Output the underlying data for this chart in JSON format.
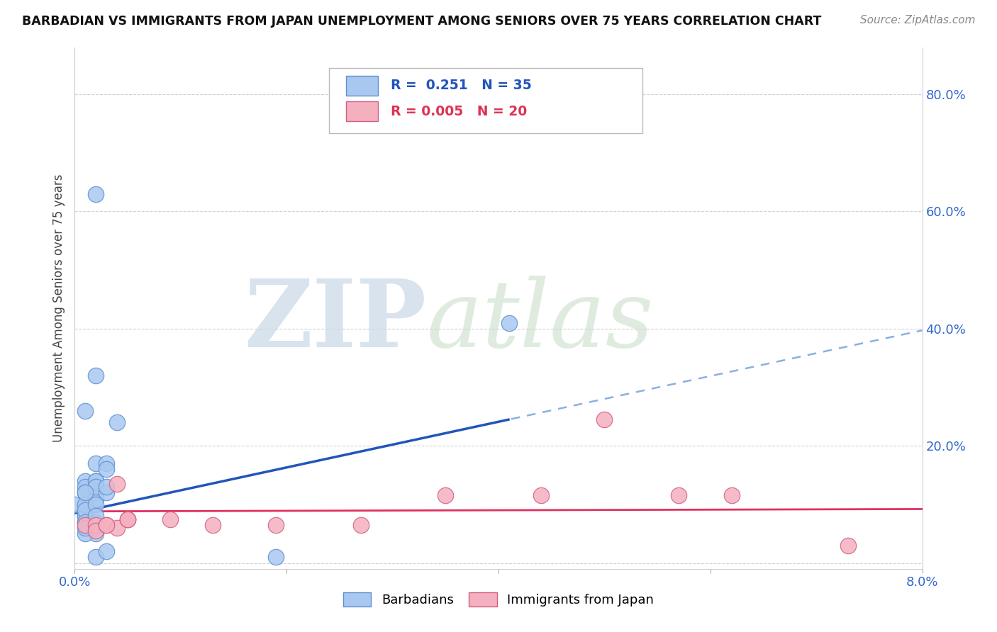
{
  "title": "BARBADIAN VS IMMIGRANTS FROM JAPAN UNEMPLOYMENT AMONG SENIORS OVER 75 YEARS CORRELATION CHART",
  "source": "Source: ZipAtlas.com",
  "ylabel": "Unemployment Among Seniors over 75 years",
  "watermark_left": "ZIP",
  "watermark_right": "atlas",
  "xlim": [
    0.0,
    0.08
  ],
  "ylim": [
    -0.01,
    0.88
  ],
  "ytick_vals": [
    0.0,
    0.2,
    0.4,
    0.6,
    0.8
  ],
  "ytick_labels_right": [
    "",
    "20.0%",
    "40.0%",
    "60.0%",
    "80.0%"
  ],
  "xtick_vals": [
    0.0,
    0.02,
    0.04,
    0.06,
    0.08
  ],
  "xtick_labels": [
    "0.0%",
    "",
    "",
    "",
    "8.0%"
  ],
  "barbadian_color": "#a8c8f0",
  "barbadian_edge": "#6090d0",
  "barbadian_trend_solid": "#2255bb",
  "barbadian_trend_dash": "#8ab0e0",
  "barbadian_R": "0.251",
  "barbadian_N": "35",
  "japan_color": "#f5b0c0",
  "japan_edge": "#d06080",
  "japan_trend": "#e03060",
  "japan_R": "0.005",
  "japan_N": "20",
  "grid_color": "#cccccc",
  "bg_color": "#ffffff",
  "trend_intercept_b": 0.085,
  "trend_slope_b": 3.9,
  "trend_intercept_j": 0.088,
  "trend_slope_j": 0.05,
  "solid_line_end_x": 0.041,
  "barbadian_x": [
    0.001,
    0.002,
    0.0,
    0.001,
    0.002,
    0.001,
    0.001,
    0.001,
    0.002,
    0.001,
    0.001,
    0.001,
    0.002,
    0.002,
    0.003,
    0.002,
    0.002,
    0.002,
    0.001,
    0.001,
    0.002,
    0.001,
    0.001,
    0.002,
    0.002,
    0.001,
    0.002,
    0.003,
    0.002,
    0.004,
    0.003,
    0.003,
    0.003,
    0.041,
    0.019
  ],
  "barbadian_y": [
    0.14,
    0.14,
    0.1,
    0.13,
    0.12,
    0.08,
    0.07,
    0.12,
    0.11,
    0.08,
    0.1,
    0.09,
    0.14,
    0.17,
    0.17,
    0.1,
    0.13,
    0.05,
    0.07,
    0.05,
    0.32,
    0.26,
    0.12,
    0.07,
    0.08,
    0.06,
    0.01,
    0.02,
    0.63,
    0.24,
    0.12,
    0.16,
    0.13,
    0.41,
    0.01
  ],
  "japan_x": [
    0.001,
    0.002,
    0.002,
    0.003,
    0.004,
    0.005,
    0.005,
    0.003,
    0.004,
    0.005,
    0.009,
    0.013,
    0.019,
    0.027,
    0.035,
    0.044,
    0.05,
    0.057,
    0.062,
    0.073
  ],
  "japan_y": [
    0.065,
    0.065,
    0.055,
    0.065,
    0.06,
    0.075,
    0.075,
    0.065,
    0.135,
    0.075,
    0.075,
    0.065,
    0.065,
    0.065,
    0.115,
    0.115,
    0.245,
    0.115,
    0.115,
    0.03
  ]
}
